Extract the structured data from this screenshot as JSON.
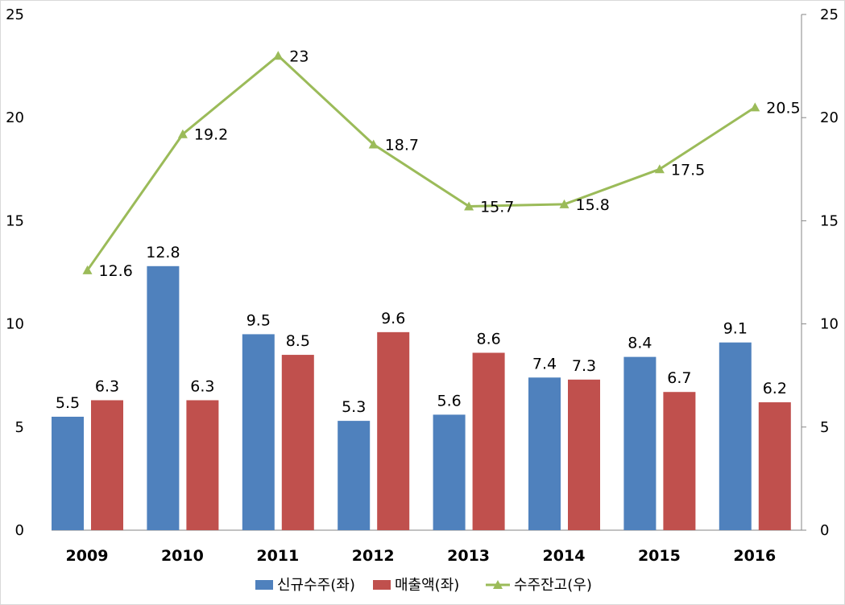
{
  "chart_data": {
    "type": "bar",
    "categories": [
      "2009",
      "2010",
      "2011",
      "2012",
      "2013",
      "2014",
      "2015",
      "2016"
    ],
    "series": [
      {
        "name": "신규수주(좌)",
        "type": "bar",
        "axis": "left",
        "color": "#4F81BD",
        "values": [
          5.5,
          12.8,
          9.5,
          5.3,
          5.6,
          7.4,
          8.4,
          9.1
        ]
      },
      {
        "name": "매출액(좌)",
        "type": "bar",
        "axis": "left",
        "color": "#C0504D",
        "values": [
          6.3,
          6.3,
          8.5,
          9.6,
          8.6,
          7.3,
          6.7,
          6.2
        ]
      },
      {
        "name": "수주잔고(우)",
        "type": "line",
        "marker": "triangle",
        "axis": "right",
        "color": "#9BBB59",
        "values": [
          12.6,
          19.2,
          23,
          18.7,
          15.7,
          15.8,
          17.5,
          20.5
        ]
      }
    ],
    "y_left": {
      "ylim": [
        0,
        25
      ],
      "ticks": [
        "0",
        "5",
        "10",
        "15",
        "20",
        "25"
      ]
    },
    "y_right": {
      "ylim": [
        0,
        25
      ],
      "ticks": [
        "0",
        "5",
        "10",
        "15",
        "20",
        "25"
      ]
    },
    "grid": false,
    "legend_position": "bottom",
    "data_labels": true
  }
}
